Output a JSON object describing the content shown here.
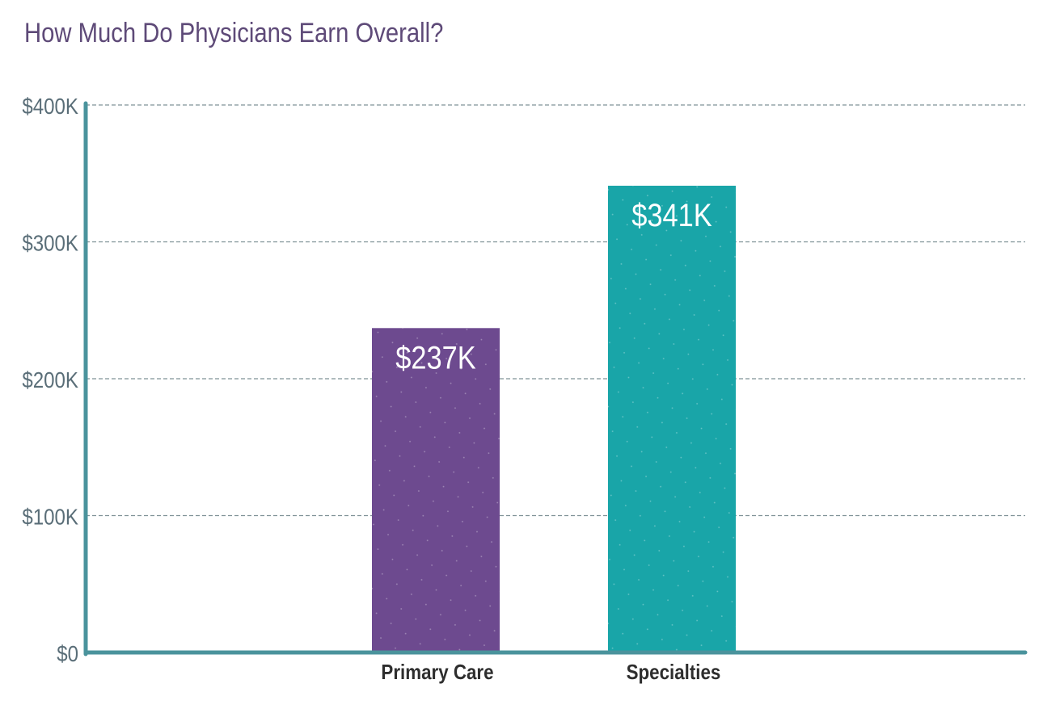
{
  "chart_data": {
    "type": "bar",
    "title": "How Much Do Physicians Earn Overall?",
    "categories": [
      "Primary Care",
      "Specialties"
    ],
    "values": [
      237,
      341
    ],
    "data_labels": [
      "$237K",
      "$341K"
    ],
    "colors": [
      "#6d4a8f",
      "#19a5a8"
    ],
    "axis_color": "#4a939c",
    "xlabel": "",
    "ylabel": "",
    "ylim": [
      0,
      400
    ],
    "yticks": [
      0,
      100,
      200,
      300,
      400
    ],
    "ytick_labels": [
      "$0",
      "$100K",
      "$200K",
      "$300K",
      "$400K"
    ],
    "grid": true,
    "unit": "thousands USD"
  }
}
